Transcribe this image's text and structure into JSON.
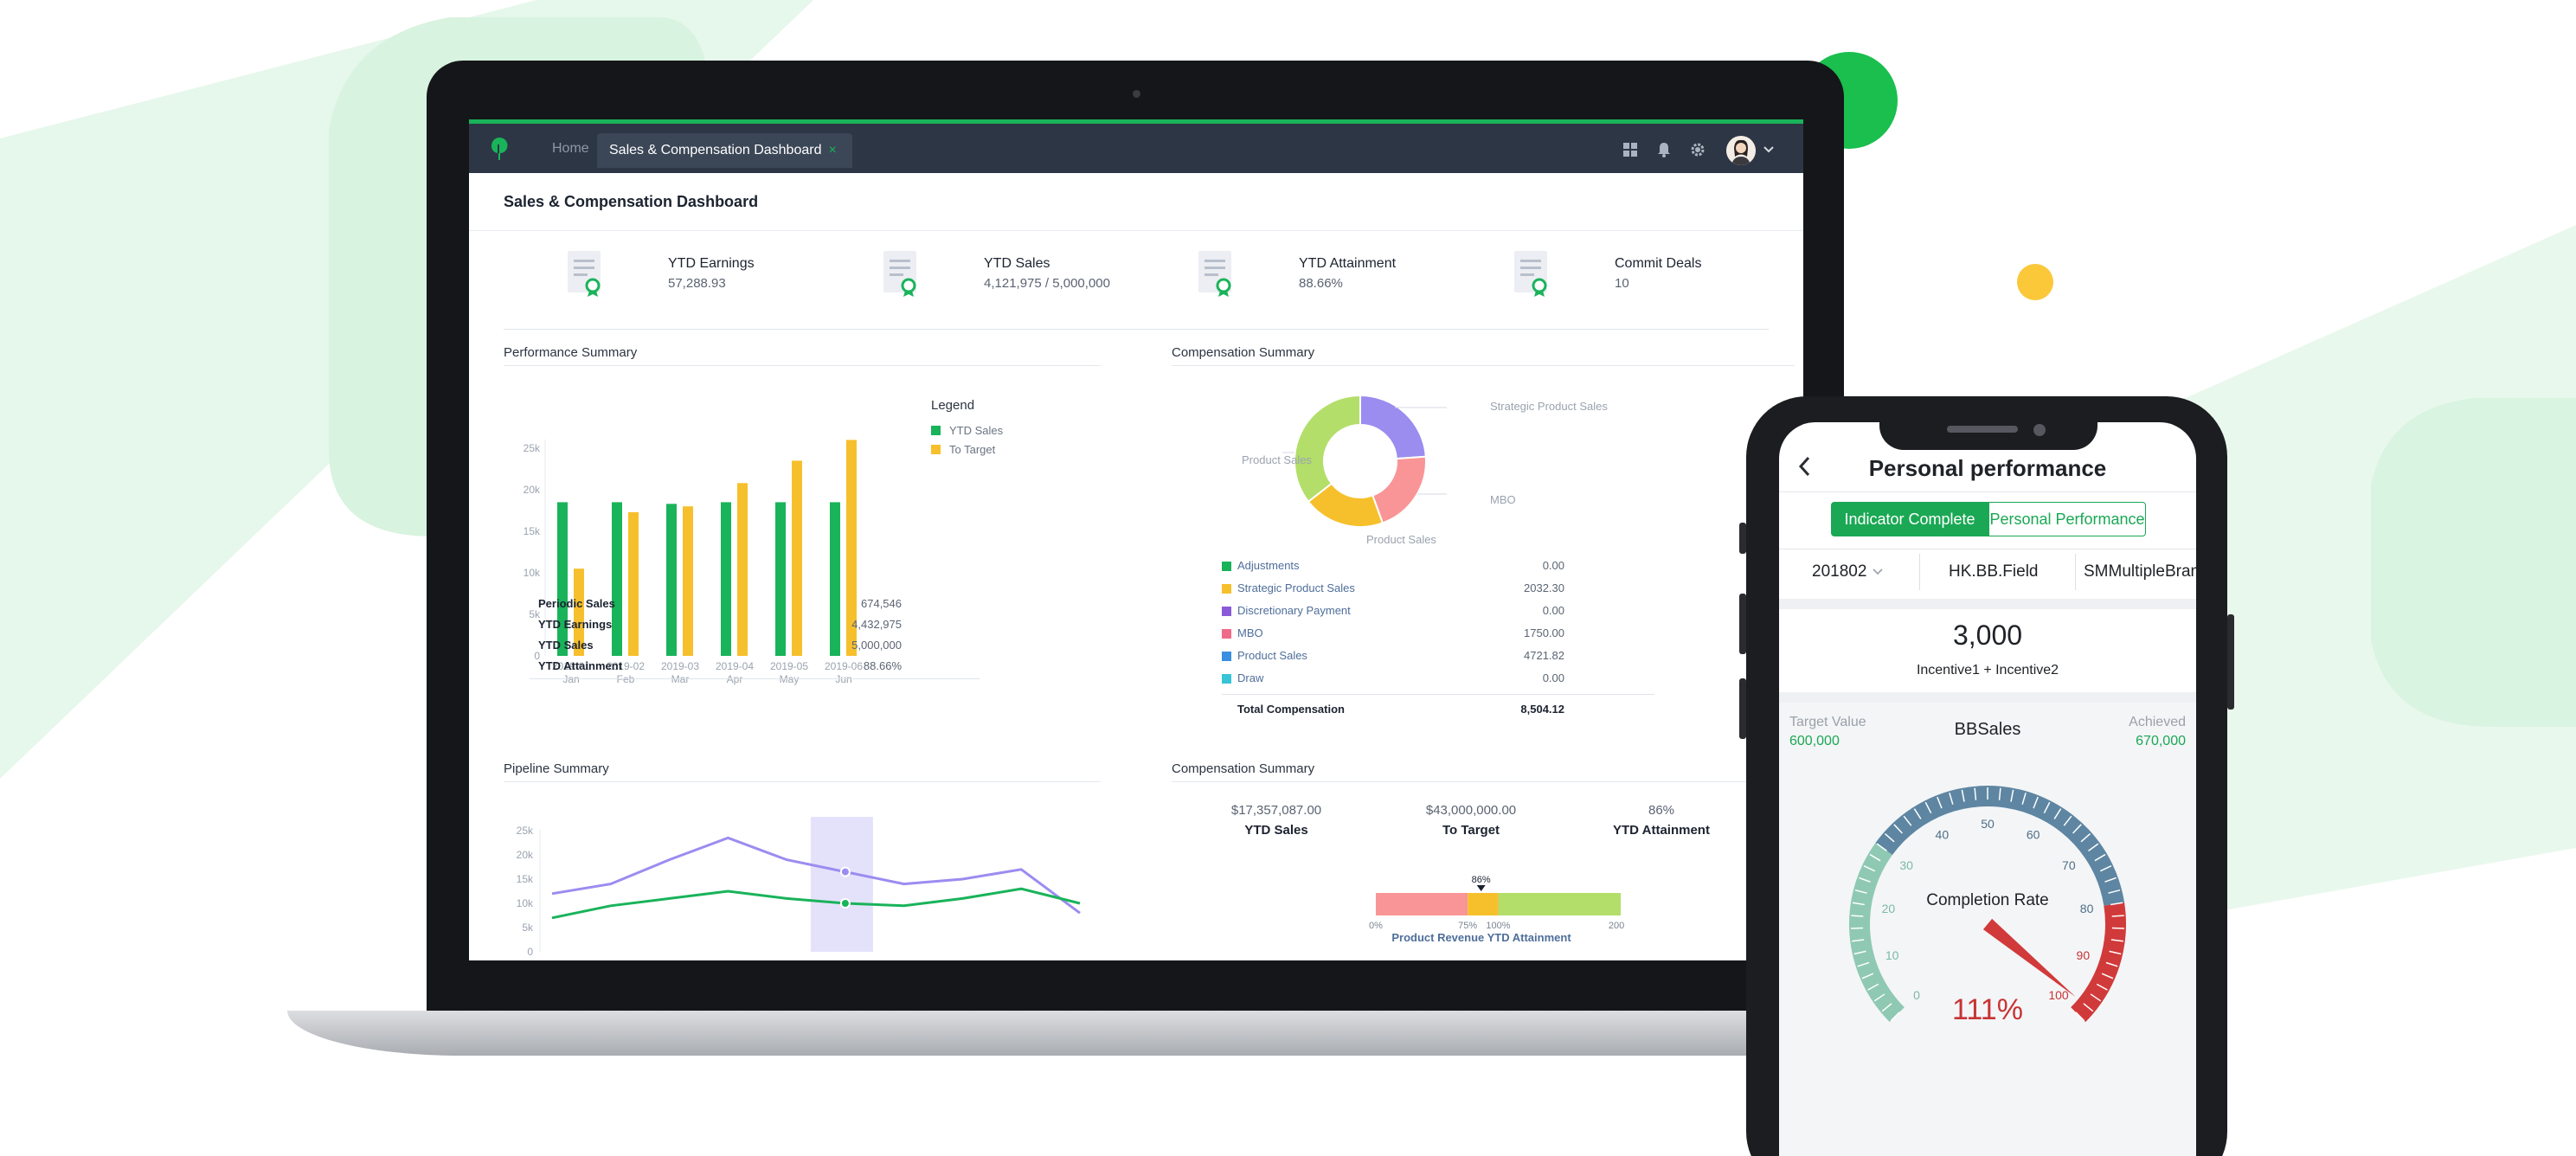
{
  "desktop": {
    "nav": {
      "home": "Home",
      "active_tab": "Sales & Compensation Dashboard",
      "close_glyph": "×"
    },
    "page_title": "Sales & Compensation Dashboard",
    "kpis": [
      {
        "label": "YTD Earnings",
        "value": "57,288.93"
      },
      {
        "label": "YTD Sales",
        "value": "4,121,975 / 5,000,000"
      },
      {
        "label": "YTD Attainment",
        "value": "88.66%"
      },
      {
        "label": "Commit Deals",
        "value": "10"
      }
    ],
    "performance": {
      "title": "Performance Summary",
      "legend_title": "Legend",
      "table": [
        {
          "label": "Periodic Sales",
          "value": "674,546"
        },
        {
          "label": "YTD Earnings",
          "value": "4,432,975"
        },
        {
          "label": "YTD Sales",
          "value": "5,000,000"
        },
        {
          "label": "YTD Attainment",
          "value": "88.66%"
        }
      ]
    },
    "compensation": {
      "title": "Compensation Summary",
      "callouts": {
        "top_right": "Strategic Product Sales",
        "left": "Product Sales",
        "right": "MBO",
        "bottom": "Product Sales"
      },
      "rows": [
        {
          "label": "Adjustments",
          "value": "0.00",
          "color": "#19b35a"
        },
        {
          "label": "Strategic Product Sales",
          "value": "2032.30",
          "color": "#f6c02d"
        },
        {
          "label": "Discretionary Payment",
          "value": "0.00",
          "color": "#8a5bd8"
        },
        {
          "label": "MBO",
          "value": "1750.00",
          "color": "#f06a8a"
        },
        {
          "label": "Product Sales",
          "value": "4721.82",
          "color": "#3a8fe0"
        },
        {
          "label": "Draw",
          "value": "0.00",
          "color": "#36c4d6"
        }
      ],
      "total_label": "Total Compensation",
      "total_value": "8,504.12"
    },
    "pipeline": {
      "title": "Pipeline Summary"
    },
    "comp_summary2": {
      "title": "Compensation Summary",
      "stats": [
        {
          "value": "$17,357,087.00",
          "label": "YTD Sales"
        },
        {
          "value": "$43,000,000.00",
          "label": "To Target"
        },
        {
          "value": "86%",
          "label": "YTD Attainment"
        }
      ],
      "marker_label": "86%",
      "tick_labels": [
        "0%",
        "75%",
        "100%",
        "200%"
      ],
      "caption": "Product Revenue YTD Attainment"
    }
  },
  "chart_data": [
    {
      "type": "bar",
      "categories": [
        "2019-01\nJan",
        "2019-02\nFeb",
        "2019-03\nMar",
        "2019-04\nApr",
        "2019-05\nMay",
        "2019-06\nJun"
      ],
      "tick_labels": [
        "0",
        "5k",
        "10k",
        "15k",
        "20k",
        "25k"
      ],
      "ylim": [
        0,
        25000
      ],
      "legend_position": "right",
      "series": [
        {
          "name": "YTD Sales",
          "color": "#19b35a",
          "values": [
            18500,
            18500,
            18300,
            18500,
            18500,
            18500
          ]
        },
        {
          "name": "To Target",
          "color": "#f6c02d",
          "values": [
            10500,
            17300,
            18000,
            20800,
            23500,
            26000
          ]
        }
      ]
    },
    {
      "type": "pie",
      "donut": true,
      "slices": [
        {
          "label": "Strategic Product Sales",
          "value": 2032.3,
          "color": "#9b8cf0"
        },
        {
          "label": "MBO",
          "value": 1750.0,
          "color": "#f99596"
        },
        {
          "label": "Product Sales",
          "value": 1700,
          "color": "#f6c02d"
        },
        {
          "label": "Product Sales",
          "value": 3021.82,
          "color": "#b3de6a"
        }
      ]
    },
    {
      "type": "line",
      "tick_labels": [
        "0",
        "5k",
        "10k",
        "15k",
        "20k",
        "25k"
      ],
      "ylim": [
        0,
        25000
      ],
      "highlight_index": 5,
      "series": [
        {
          "color": "#9b8cf0",
          "values": [
            12000,
            14000,
            19000,
            23500,
            19000,
            16500,
            14000,
            15000,
            17000,
            8000
          ]
        },
        {
          "color": "#19b35a",
          "values": [
            7000,
            9500,
            11000,
            12500,
            11000,
            10000,
            9500,
            11000,
            13000,
            10000
          ]
        }
      ]
    }
  ],
  "progress": {
    "segments": [
      {
        "from": 0,
        "to": 75,
        "color": "#f99596"
      },
      {
        "from": 75,
        "to": 100,
        "color": "#f6c02d"
      },
      {
        "from": 100,
        "to": 200,
        "color": "#b3de6a"
      }
    ],
    "max": 200,
    "marker": 86
  },
  "phone": {
    "title": "Personal performance",
    "seg_on": "Indicator Complete",
    "seg_off": "Personal Performance",
    "filters": [
      "201802",
      "HK.BB.Field",
      "SMMultipleBrand"
    ],
    "big_value": "3,000",
    "big_caption": "Incentive1 + Incentive2",
    "target_label": "Target Value",
    "target_value": "600,000",
    "center_label": "BBSales",
    "achieved_label": "Achieved",
    "achieved_value": "670,000",
    "gauge_title": "Completion Rate",
    "gauge_value": "111%",
    "gauge_ticks": [
      "0",
      "10",
      "20",
      "30",
      "40",
      "50",
      "60",
      "70",
      "80",
      "90",
      "100"
    ],
    "gauge_percent": 111
  }
}
